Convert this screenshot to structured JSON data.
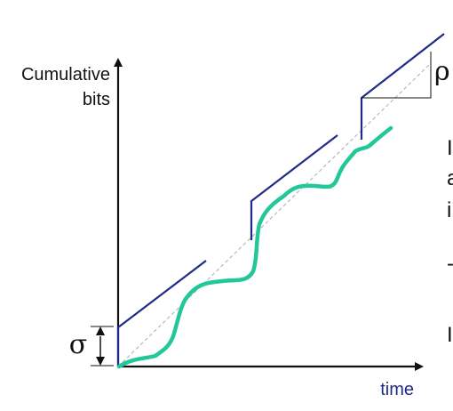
{
  "labels": {
    "y_axis_line1": "Cumulative",
    "y_axis_line2": "bits",
    "x_axis": "time",
    "sigma": "σ",
    "rho": "ρ"
  },
  "right_edge_text": [
    "I",
    "a",
    "i",
    "-",
    "I"
  ],
  "colors": {
    "axis": "#111111",
    "envelope": "#1f2a86",
    "traffic": "#22c79a",
    "rate_line": "#b8b8b8",
    "label_blue": "#1f2a86"
  }
}
